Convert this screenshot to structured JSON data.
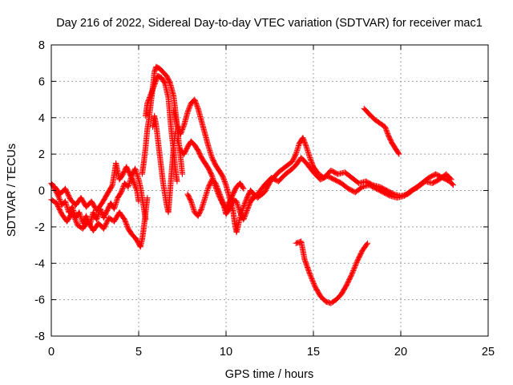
{
  "chart_data": {
    "type": "scatter",
    "title": "Day 216 of 2022, Sidereal Day-to-day VTEC variation (SDTVAR) for receiver mac1",
    "xlabel": "GPS time / hours",
    "ylabel": "SDTVAR / TECUs",
    "xlim": [
      0,
      25
    ],
    "ylim": [
      -8,
      8
    ],
    "xticks": [
      0,
      5,
      10,
      15,
      20,
      25
    ],
    "yticks": [
      -8,
      -6,
      -4,
      -2,
      0,
      2,
      4,
      6,
      8
    ],
    "grid": true,
    "marker": "+",
    "series": [
      {
        "name": "SDTVAR",
        "color": "#ff0000",
        "segments": [
          [
            [
              0.0,
              0.4
            ],
            [
              0.2,
              0.1
            ],
            [
              0.4,
              -0.3
            ],
            [
              0.6,
              -0.8
            ],
            [
              0.8,
              -0.6
            ],
            [
              1.0,
              -1.2
            ],
            [
              1.2,
              -0.9
            ],
            [
              1.4,
              -1.5
            ],
            [
              1.6,
              -1.2
            ],
            [
              1.8,
              -1.8
            ],
            [
              2.0,
              -1.4
            ],
            [
              2.2,
              -1.9
            ],
            [
              2.4,
              -1.2
            ],
            [
              2.6,
              -1.6
            ],
            [
              2.8,
              -1.0
            ],
            [
              3.0,
              -1.5
            ],
            [
              3.2,
              -1.1
            ],
            [
              3.4,
              -0.7
            ],
            [
              3.6,
              -1.0
            ],
            [
              3.8,
              -0.4
            ],
            [
              4.0,
              -0.1
            ],
            [
              4.2,
              0.4
            ],
            [
              4.4,
              0.2
            ],
            [
              4.6,
              0.8
            ],
            [
              4.8,
              1.2
            ],
            [
              5.0,
              0.6
            ],
            [
              5.1,
              0.2
            ],
            [
              5.2,
              -0.4
            ],
            [
              5.3,
              -1.0
            ],
            [
              5.4,
              -1.6
            ]
          ],
          [
            [
              0.0,
              -0.5
            ],
            [
              0.3,
              -0.7
            ],
            [
              0.6,
              -1.3
            ],
            [
              0.9,
              -1.7
            ],
            [
              1.2,
              -1.2
            ],
            [
              1.5,
              -1.9
            ],
            [
              1.8,
              -2.1
            ],
            [
              2.1,
              -1.7
            ],
            [
              2.4,
              -2.2
            ],
            [
              2.7,
              -1.8
            ],
            [
              3.0,
              -2.1
            ],
            [
              3.3,
              -1.5
            ],
            [
              3.6,
              -1.7
            ],
            [
              3.9,
              -1.2
            ],
            [
              4.2,
              -1.6
            ],
            [
              4.4,
              -2.1
            ],
            [
              4.6,
              -2.4
            ],
            [
              4.8,
              -2.6
            ],
            [
              5.0,
              -2.9
            ],
            [
              5.1,
              -3.1
            ],
            [
              5.2,
              -2.7
            ],
            [
              5.3,
              -2.0
            ],
            [
              5.4,
              -1.2
            ],
            [
              5.5,
              -0.4
            ]
          ],
          [
            [
              0.2,
              0.2
            ],
            [
              0.5,
              -0.2
            ],
            [
              0.8,
              0.1
            ],
            [
              1.1,
              -0.5
            ],
            [
              1.4,
              -0.8
            ],
            [
              1.7,
              -0.4
            ],
            [
              2.0,
              -0.9
            ],
            [
              2.3,
              -0.6
            ],
            [
              2.6,
              -1.1
            ],
            [
              2.9,
              -0.7
            ],
            [
              3.2,
              -0.2
            ],
            [
              3.5,
              0.3
            ],
            [
              3.7,
              1.5
            ],
            [
              3.9,
              0.6
            ],
            [
              4.1,
              0.9
            ],
            [
              4.3,
              1.3
            ],
            [
              4.5,
              0.9
            ],
            [
              4.7,
              0.5
            ],
            [
              4.9,
              0.0
            ],
            [
              5.0,
              -0.6
            ]
          ],
          [
            [
              5.2,
              0.9
            ],
            [
              5.3,
              1.6
            ],
            [
              5.4,
              2.4
            ],
            [
              5.5,
              3.4
            ],
            [
              5.6,
              4.0
            ],
            [
              5.7,
              4.8
            ],
            [
              5.8,
              5.6
            ],
            [
              5.9,
              6.5
            ],
            [
              6.0,
              6.8
            ],
            [
              6.2,
              6.7
            ],
            [
              6.4,
              6.5
            ],
            [
              6.6,
              6.3
            ],
            [
              6.8,
              5.9
            ],
            [
              7.0,
              5.2
            ],
            [
              7.1,
              4.4
            ],
            [
              7.2,
              3.6
            ],
            [
              7.3,
              2.6
            ],
            [
              7.4,
              1.8
            ],
            [
              7.5,
              0.9
            ]
          ],
          [
            [
              5.4,
              4.1
            ],
            [
              5.5,
              4.8
            ],
            [
              5.7,
              5.3
            ],
            [
              5.9,
              5.8
            ],
            [
              6.1,
              6.3
            ],
            [
              6.3,
              6.2
            ],
            [
              6.5,
              5.9
            ],
            [
              6.7,
              5.1
            ],
            [
              6.8,
              4.0
            ],
            [
              6.9,
              3.0
            ],
            [
              7.0,
              2.2
            ],
            [
              7.1,
              1.2
            ],
            [
              7.2,
              0.5
            ]
          ],
          [
            [
              5.8,
              3.5
            ],
            [
              5.9,
              4.1
            ],
            [
              6.0,
              3.6
            ],
            [
              6.1,
              2.8
            ],
            [
              6.2,
              2.0
            ],
            [
              6.3,
              1.2
            ],
            [
              6.4,
              0.4
            ],
            [
              6.5,
              -0.2
            ],
            [
              6.6,
              -0.8
            ],
            [
              6.7,
              -1.2
            ],
            [
              6.8,
              0.0
            ],
            [
              6.9,
              1.2
            ],
            [
              7.0,
              2.4
            ],
            [
              7.1,
              3.2
            ]
          ],
          [
            [
              7.0,
              4.4
            ],
            [
              7.2,
              3.6
            ],
            [
              7.4,
              3.1
            ],
            [
              7.6,
              3.6
            ],
            [
              7.8,
              4.3
            ],
            [
              8.0,
              4.8
            ],
            [
              8.2,
              5.0
            ],
            [
              8.4,
              4.5
            ],
            [
              8.6,
              3.8
            ],
            [
              8.8,
              3.1
            ],
            [
              9.0,
              2.4
            ],
            [
              9.2,
              1.8
            ],
            [
              9.4,
              1.4
            ],
            [
              9.6,
              1.1
            ],
            [
              9.8,
              0.8
            ],
            [
              10.0,
              0.3
            ],
            [
              10.2,
              -0.4
            ],
            [
              10.4,
              -1.1
            ],
            [
              10.5,
              -1.8
            ],
            [
              10.6,
              -2.3
            ],
            [
              10.8,
              -1.5
            ],
            [
              11.0,
              -0.9
            ],
            [
              11.2,
              -0.4
            ],
            [
              11.4,
              0.0
            ]
          ],
          [
            [
              7.2,
              2.8
            ],
            [
              7.4,
              2.2
            ],
            [
              7.6,
              2.0
            ],
            [
              7.8,
              2.4
            ],
            [
              8.0,
              2.7
            ],
            [
              8.2,
              2.5
            ],
            [
              8.4,
              2.2
            ],
            [
              8.6,
              1.8
            ],
            [
              8.8,
              1.5
            ],
            [
              9.0,
              1.2
            ],
            [
              9.2,
              0.8
            ],
            [
              9.4,
              0.2
            ],
            [
              9.6,
              -0.3
            ],
            [
              9.8,
              -0.7
            ],
            [
              10.0,
              -1.0
            ],
            [
              10.2,
              -0.6
            ],
            [
              10.4,
              -0.2
            ],
            [
              10.6,
              0.2
            ],
            [
              10.8,
              0.4
            ],
            [
              11.0,
              0.1
            ]
          ],
          [
            [
              7.8,
              -0.2
            ],
            [
              8.0,
              -0.6
            ],
            [
              8.2,
              -1.2
            ],
            [
              8.4,
              -1.4
            ],
            [
              8.6,
              -1.0
            ],
            [
              8.8,
              -0.4
            ],
            [
              9.0,
              0.2
            ],
            [
              9.2,
              0.6
            ],
            [
              9.4,
              0.4
            ],
            [
              9.6,
              -0.1
            ],
            [
              9.8,
              -0.6
            ],
            [
              10.0,
              -1.3
            ],
            [
              10.2,
              -1.0
            ],
            [
              10.4,
              -0.5
            ],
            [
              10.6,
              -0.6
            ],
            [
              10.8,
              -1.2
            ],
            [
              11.0,
              -1.6
            ],
            [
              11.2,
              -1.1
            ],
            [
              11.4,
              -0.6
            ],
            [
              11.6,
              -0.3
            ]
          ],
          [
            [
              11.4,
              0.0
            ],
            [
              11.8,
              -0.4
            ],
            [
              12.2,
              -0.1
            ],
            [
              12.6,
              0.6
            ],
            [
              13.0,
              1.0
            ],
            [
              13.4,
              1.3
            ],
            [
              13.8,
              1.6
            ],
            [
              14.0,
              2.0
            ],
            [
              14.2,
              2.6
            ],
            [
              14.4,
              2.9
            ],
            [
              14.6,
              2.4
            ],
            [
              14.8,
              1.8
            ],
            [
              15.0,
              1.3
            ],
            [
              15.3,
              0.9
            ],
            [
              15.6,
              0.7
            ],
            [
              16.0,
              1.1
            ],
            [
              16.4,
              0.9
            ],
            [
              16.8,
              1.0
            ],
            [
              17.2,
              0.7
            ],
            [
              17.6,
              0.4
            ],
            [
              18.0,
              0.5
            ],
            [
              18.4,
              0.3
            ],
            [
              18.8,
              0.2
            ],
            [
              19.2,
              0.0
            ],
            [
              19.6,
              -0.2
            ],
            [
              20.0,
              -0.3
            ],
            [
              20.4,
              -0.2
            ],
            [
              20.8,
              0.1
            ],
            [
              21.2,
              0.4
            ],
            [
              21.6,
              0.7
            ],
            [
              22.0,
              0.9
            ],
            [
              22.4,
              0.7
            ],
            [
              22.8,
              0.5
            ],
            [
              23.0,
              0.3
            ]
          ],
          [
            [
              11.4,
              -0.6
            ],
            [
              11.8,
              -0.2
            ],
            [
              12.2,
              0.3
            ],
            [
              12.6,
              0.7
            ],
            [
              13.0,
              0.5
            ],
            [
              13.4,
              0.9
            ],
            [
              13.8,
              1.2
            ],
            [
              14.0,
              1.4
            ],
            [
              14.3,
              1.8
            ],
            [
              14.6,
              1.5
            ],
            [
              15.0,
              1.0
            ],
            [
              15.4,
              0.6
            ],
            [
              15.8,
              0.8
            ],
            [
              16.2,
              0.6
            ],
            [
              16.6,
              0.4
            ],
            [
              17.0,
              0.1
            ],
            [
              17.4,
              -0.1
            ],
            [
              17.8,
              0.2
            ],
            [
              18.2,
              0.3
            ],
            [
              18.6,
              0.1
            ],
            [
              19.0,
              -0.1
            ],
            [
              19.4,
              -0.3
            ],
            [
              19.8,
              -0.4
            ],
            [
              20.2,
              -0.3
            ],
            [
              20.6,
              0.0
            ],
            [
              21.0,
              0.2
            ],
            [
              21.4,
              0.5
            ],
            [
              21.8,
              0.4
            ],
            [
              22.2,
              0.6
            ],
            [
              22.6,
              0.9
            ],
            [
              22.9,
              0.6
            ]
          ],
          [
            [
              14.0,
              -2.9
            ],
            [
              14.3,
              -2.8
            ],
            [
              14.5,
              -3.8
            ],
            [
              14.8,
              -4.6
            ],
            [
              15.1,
              -5.3
            ],
            [
              15.4,
              -5.8
            ],
            [
              15.7,
              -6.1
            ],
            [
              16.0,
              -6.2
            ],
            [
              16.3,
              -6.0
            ],
            [
              16.6,
              -5.7
            ],
            [
              16.9,
              -5.2
            ],
            [
              17.2,
              -4.6
            ],
            [
              17.5,
              -3.9
            ],
            [
              17.8,
              -3.3
            ],
            [
              18.1,
              -2.9
            ]
          ],
          [
            [
              17.9,
              4.5
            ],
            [
              18.2,
              4.2
            ],
            [
              18.5,
              3.9
            ],
            [
              18.8,
              3.7
            ],
            [
              19.1,
              3.5
            ],
            [
              19.3,
              3.0
            ],
            [
              19.5,
              2.6
            ],
            [
              19.7,
              2.3
            ],
            [
              19.9,
              2.0
            ]
          ]
        ]
      }
    ]
  }
}
